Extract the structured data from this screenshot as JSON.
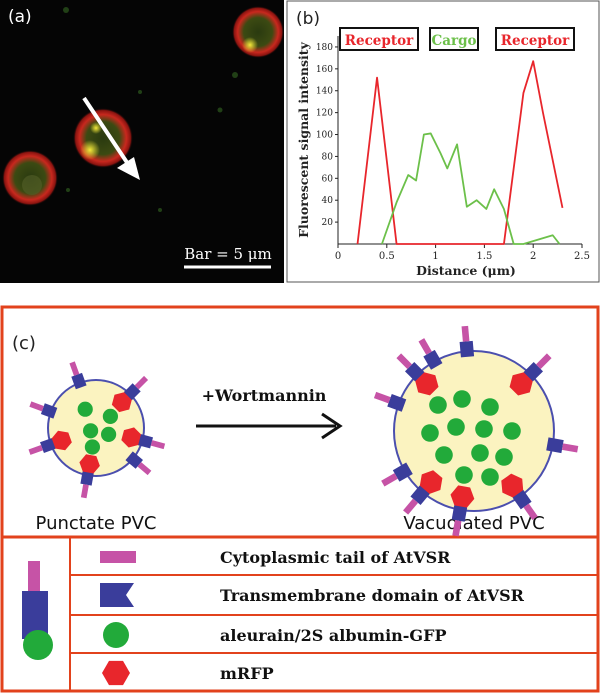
{
  "panel_a": {
    "label": "(a)",
    "scale_bar_text": "Bar = 5 μm"
  },
  "panel_b": {
    "label": "(b)",
    "boxes": [
      "Receptor",
      "Cargo",
      "Receptor"
    ],
    "ylabel": "Fluorescent signal intensity",
    "xlabel": "Distance (μm)",
    "x_ticks": [
      "0",
      "0.5",
      "1",
      "1.5",
      "2",
      "2.5"
    ],
    "y_ticks": [
      "20",
      "40",
      "60",
      "80",
      "100",
      "120",
      "140",
      "160",
      "180"
    ],
    "colors": {
      "receptor": "#e8262c",
      "cargo": "#6cc04a"
    }
  },
  "chart_data": {
    "type": "line",
    "xlabel": "Distance (μm)",
    "ylabel": "Fluorescent signal intensity",
    "xlim": [
      0,
      2.5
    ],
    "ylim": [
      0,
      190
    ],
    "series": [
      {
        "name": "Receptor",
        "color": "#e8262c",
        "x": [
          0.2,
          0.4,
          0.6,
          0.7,
          1.05,
          1.1,
          1.7,
          1.9,
          2.0,
          2.1,
          2.3
        ],
        "y": [
          0,
          152,
          0,
          0,
          0,
          0,
          0,
          138,
          167,
          120,
          33
        ]
      },
      {
        "name": "Cargo",
        "color": "#6cc04a",
        "x": [
          0.45,
          0.6,
          0.72,
          0.8,
          0.88,
          0.95,
          1.05,
          1.12,
          1.22,
          1.32,
          1.42,
          1.52,
          1.6,
          1.7,
          1.8,
          1.9,
          2.2,
          2.27
        ],
        "y": [
          0,
          38,
          63,
          58,
          100,
          101,
          83,
          69,
          91,
          34,
          40,
          32,
          50,
          32,
          0,
          0,
          8,
          0
        ]
      }
    ]
  },
  "panel_c": {
    "label": "(c)",
    "arrow_text": "+Wortmannin",
    "left_caption": "Punctate PVC",
    "right_caption": "Vacuolated PVC",
    "legend": [
      {
        "icon": "tail",
        "text": "Cytoplasmic tail of AtVSR"
      },
      {
        "icon": "transmembrane",
        "text": "Transmembrane domain of AtVSR"
      },
      {
        "icon": "gfp",
        "text": "aleurain/2S albumin-GFP"
      },
      {
        "icon": "mrfp",
        "text": "mRFP"
      }
    ],
    "colors": {
      "frame": "#e2421c",
      "vesicle_fill": "#fbf3c0",
      "membrane": "#4b4fae",
      "tail": "#c653a6",
      "tm": "#3a3d9b",
      "gfp": "#22aa3a",
      "mrfp": "#e8262c"
    }
  }
}
